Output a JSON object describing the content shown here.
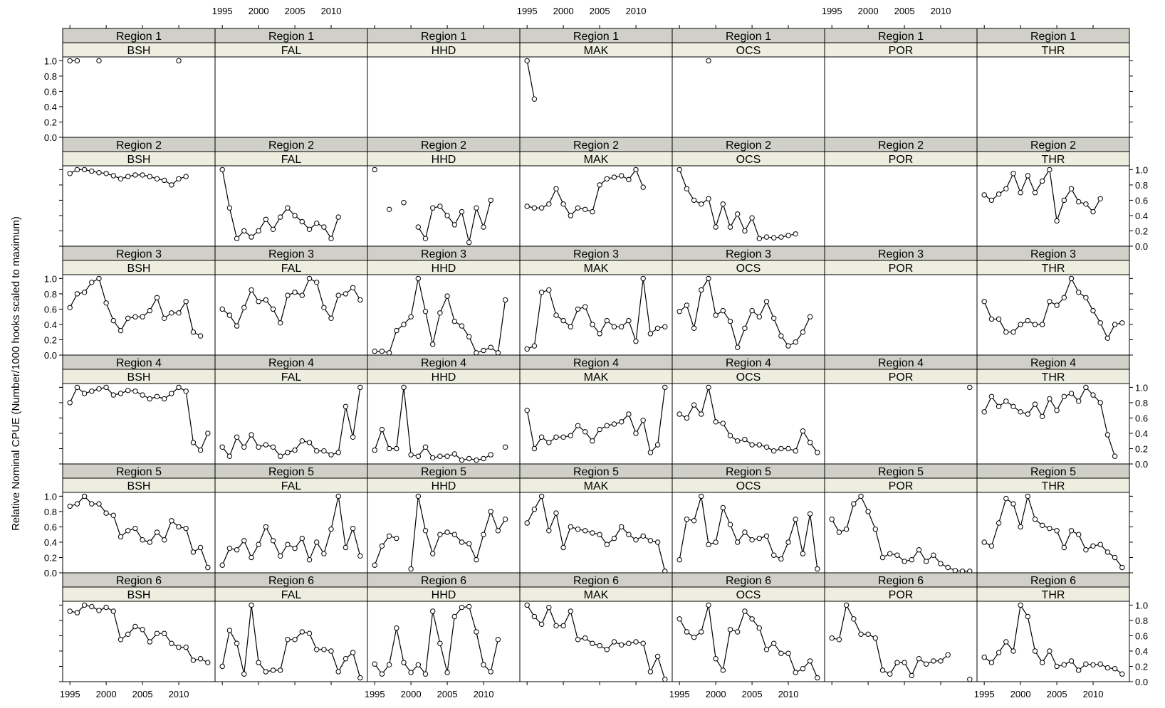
{
  "chart_data": {
    "type": "line",
    "ylabel": "Relative Nominal CPUE (Number/1000 hooks scaled to maximum)",
    "xlim": [
      1994,
      2015
    ],
    "ylim": [
      0,
      1.05
    ],
    "x_ticks": [
      1995,
      2000,
      2005,
      2010
    ],
    "y_ticks": [
      0.0,
      0.2,
      0.4,
      0.6,
      0.8,
      1.0
    ],
    "y_tick_labels": [
      "0.0",
      "0.2",
      "0.4",
      "0.6",
      "0.8",
      "1.0"
    ],
    "years": [
      1995,
      1996,
      1997,
      1998,
      1999,
      2000,
      2001,
      2002,
      2003,
      2004,
      2005,
      2006,
      2007,
      2008,
      2009,
      2010,
      2011,
      2012,
      2013,
      2014
    ],
    "regions": [
      "Region 1",
      "Region 2",
      "Region 3",
      "Region 4",
      "Region 5",
      "Region 6"
    ],
    "species": [
      "BSH",
      "FAL",
      "HHD",
      "MAK",
      "OCS",
      "POR",
      "THR"
    ],
    "panels": [
      [
        [
          1,
          1,
          null,
          null,
          1,
          null,
          null,
          null,
          null,
          null,
          null,
          null,
          null,
          null,
          null,
          1,
          null,
          null,
          null,
          null
        ],
        [
          null,
          null,
          null,
          null,
          null,
          null,
          null,
          null,
          null,
          null,
          null,
          null,
          null,
          null,
          null,
          null,
          null,
          null,
          null,
          null
        ],
        [
          null,
          null,
          null,
          null,
          null,
          null,
          null,
          null,
          null,
          null,
          null,
          null,
          null,
          null,
          null,
          null,
          null,
          null,
          null,
          null
        ],
        [
          1,
          0.5,
          null,
          null,
          null,
          null,
          null,
          null,
          null,
          null,
          null,
          null,
          null,
          null,
          null,
          null,
          null,
          null,
          null,
          null
        ],
        [
          null,
          null,
          null,
          null,
          1,
          null,
          null,
          null,
          null,
          null,
          null,
          null,
          null,
          null,
          null,
          null,
          null,
          null,
          null,
          null
        ],
        [
          null,
          null,
          null,
          null,
          null,
          null,
          null,
          null,
          null,
          null,
          null,
          null,
          null,
          null,
          null,
          null,
          null,
          null,
          null,
          null
        ],
        [
          null,
          null,
          null,
          null,
          null,
          null,
          null,
          null,
          null,
          null,
          null,
          null,
          null,
          null,
          null,
          null,
          null,
          null,
          null,
          null
        ]
      ],
      [
        [
          0.95,
          1,
          1,
          0.98,
          0.96,
          0.95,
          0.92,
          0.88,
          0.91,
          0.93,
          0.93,
          0.91,
          0.88,
          0.86,
          0.8,
          0.88,
          0.91,
          null,
          null,
          null
        ],
        [
          1,
          0.5,
          0.1,
          0.2,
          0.12,
          0.2,
          0.35,
          0.22,
          0.38,
          0.5,
          0.4,
          0.32,
          0.22,
          0.3,
          0.25,
          0.1,
          0.38,
          null,
          null,
          null
        ],
        [
          1,
          null,
          0.48,
          null,
          0.57,
          null,
          0.25,
          0.1,
          0.5,
          0.52,
          0.4,
          0.28,
          0.45,
          0.05,
          0.5,
          0.25,
          0.6,
          null,
          null,
          null
        ],
        [
          0.52,
          0.5,
          0.5,
          0.55,
          0.75,
          0.55,
          0.4,
          0.5,
          0.48,
          0.45,
          0.8,
          0.88,
          0.9,
          0.92,
          0.87,
          1,
          0.77,
          null,
          null,
          null
        ],
        [
          1,
          0.75,
          0.6,
          0.55,
          0.62,
          0.25,
          0.55,
          0.25,
          0.42,
          0.2,
          0.37,
          0.1,
          0.12,
          0.11,
          0.12,
          0.14,
          0.16,
          null,
          null,
          null
        ],
        [
          null,
          null,
          null,
          null,
          null,
          null,
          null,
          null,
          null,
          null,
          null,
          null,
          null,
          null,
          null,
          null,
          null,
          null,
          null,
          null
        ],
        [
          0.67,
          0.6,
          0.68,
          0.75,
          0.95,
          0.7,
          0.92,
          0.7,
          0.85,
          1,
          0.33,
          0.6,
          0.75,
          0.58,
          0.55,
          0.45,
          0.62,
          null,
          null,
          null
        ]
      ],
      [
        [
          0.62,
          0.8,
          0.82,
          0.95,
          1,
          0.68,
          0.45,
          0.32,
          0.48,
          0.5,
          0.5,
          0.58,
          0.75,
          0.48,
          0.55,
          0.55,
          0.7,
          0.3,
          0.25,
          null
        ],
        [
          0.6,
          0.52,
          0.38,
          0.62,
          0.85,
          0.7,
          0.72,
          0.6,
          0.42,
          0.78,
          0.82,
          0.78,
          1,
          0.95,
          0.62,
          0.48,
          0.78,
          0.8,
          0.88,
          0.72
        ],
        [
          0.05,
          0.05,
          0.03,
          0.32,
          0.4,
          0.5,
          1,
          0.57,
          0.14,
          0.55,
          0.77,
          0.44,
          0.38,
          0.24,
          0.03,
          0.06,
          0.1,
          0.03,
          0.72,
          null
        ],
        [
          0.08,
          0.12,
          0.82,
          0.85,
          0.52,
          0.45,
          0.37,
          0.6,
          0.63,
          0.4,
          0.28,
          0.45,
          0.37,
          0.37,
          0.45,
          0.18,
          1,
          0.28,
          0.35,
          0.37
        ],
        [
          0.57,
          0.65,
          0.35,
          0.85,
          1,
          0.52,
          0.58,
          0.44,
          0.1,
          0.35,
          0.58,
          0.5,
          0.7,
          0.48,
          0.25,
          0.12,
          0.17,
          0.3,
          0.5,
          null
        ],
        [
          null,
          null,
          null,
          null,
          null,
          null,
          null,
          null,
          null,
          null,
          null,
          null,
          null,
          null,
          null,
          null,
          null,
          null,
          null,
          null
        ],
        [
          0.7,
          0.47,
          0.47,
          0.3,
          0.3,
          0.4,
          0.45,
          0.4,
          0.4,
          0.7,
          0.65,
          0.75,
          1,
          0.82,
          0.75,
          0.58,
          0.42,
          0.22,
          0.4,
          0.42
        ]
      ],
      [
        [
          0.8,
          1,
          0.92,
          0.95,
          0.98,
          1,
          0.9,
          0.92,
          0.96,
          0.95,
          0.9,
          0.85,
          0.88,
          0.85,
          0.92,
          1,
          0.95,
          0.28,
          0.18,
          0.4
        ],
        [
          0.22,
          0.1,
          0.35,
          0.22,
          0.38,
          0.22,
          0.25,
          0.22,
          0.1,
          0.15,
          0.18,
          0.3,
          0.28,
          0.17,
          0.17,
          0.12,
          0.15,
          0.75,
          0.35,
          1
        ],
        [
          0.18,
          0.45,
          0.2,
          0.2,
          1,
          0.12,
          0.1,
          0.22,
          0.08,
          0.1,
          0.1,
          0.13,
          0.05,
          0.07,
          0.05,
          0.07,
          0.12,
          null,
          0.22,
          null
        ],
        [
          0.7,
          0.2,
          0.35,
          0.28,
          0.35,
          0.35,
          0.37,
          0.5,
          0.42,
          0.3,
          0.45,
          0.5,
          0.52,
          0.55,
          0.65,
          0.4,
          0.57,
          0.15,
          0.25,
          1
        ],
        [
          0.65,
          0.6,
          0.77,
          0.65,
          1,
          0.55,
          0.53,
          0.37,
          0.3,
          0.32,
          0.25,
          0.25,
          0.22,
          0.17,
          0.2,
          0.2,
          0.17,
          0.43,
          0.28,
          0.15
        ],
        [
          null,
          null,
          null,
          null,
          null,
          null,
          null,
          null,
          null,
          null,
          null,
          null,
          null,
          null,
          null,
          null,
          null,
          null,
          null,
          1
        ],
        [
          0.68,
          0.88,
          0.75,
          0.82,
          0.75,
          0.68,
          0.65,
          0.78,
          0.62,
          0.85,
          0.7,
          0.88,
          0.92,
          0.82,
          1,
          0.9,
          0.8,
          0.38,
          0.1,
          null
        ]
      ],
      [
        [
          0.87,
          0.9,
          1,
          0.9,
          0.9,
          0.78,
          0.75,
          0.47,
          0.55,
          0.58,
          0.43,
          0.4,
          0.53,
          0.43,
          0.68,
          0.6,
          0.58,
          0.27,
          0.33,
          0.07
        ],
        [
          0.1,
          0.32,
          0.3,
          0.42,
          0.2,
          0.37,
          0.6,
          0.42,
          0.22,
          0.37,
          0.32,
          0.45,
          0.17,
          0.4,
          0.25,
          0.57,
          1,
          0.33,
          0.58,
          0.22
        ],
        [
          0.1,
          0.35,
          0.48,
          0.45,
          null,
          0.05,
          1,
          0.55,
          0.25,
          0.5,
          0.53,
          0.5,
          0.4,
          0.38,
          0.17,
          0.5,
          0.8,
          0.55,
          0.7,
          null
        ],
        [
          0.65,
          0.83,
          1,
          0.55,
          0.78,
          0.33,
          0.6,
          0.57,
          0.55,
          0.52,
          0.5,
          0.37,
          0.45,
          0.6,
          0.5,
          0.43,
          0.48,
          0.42,
          0.4,
          0.02
        ],
        [
          0.17,
          0.7,
          0.68,
          1,
          0.37,
          0.4,
          0.85,
          0.63,
          0.4,
          0.53,
          0.43,
          0.45,
          0.48,
          0.23,
          0.18,
          0.4,
          0.7,
          0.25,
          0.77,
          0.05
        ],
        [
          0.7,
          0.53,
          0.57,
          0.9,
          1,
          0.8,
          0.57,
          0.2,
          0.25,
          0.23,
          0.15,
          0.17,
          0.3,
          0.15,
          0.23,
          0.12,
          0.07,
          0.03,
          0.02,
          0.02
        ],
        [
          0.4,
          0.35,
          0.65,
          0.97,
          0.9,
          0.6,
          1,
          0.7,
          0.62,
          0.58,
          0.55,
          0.33,
          0.55,
          0.5,
          0.3,
          0.35,
          0.37,
          0.27,
          0.2,
          0.07
        ]
      ],
      [
        [
          0.92,
          0.9,
          1,
          0.98,
          0.93,
          0.97,
          0.92,
          0.55,
          0.62,
          0.72,
          0.68,
          0.52,
          0.63,
          0.63,
          0.5,
          0.45,
          0.45,
          0.28,
          0.3,
          0.25
        ],
        [
          0.2,
          0.67,
          0.5,
          0.1,
          1,
          0.25,
          0.13,
          0.15,
          0.15,
          0.55,
          0.55,
          0.65,
          0.63,
          0.42,
          0.42,
          0.4,
          0.13,
          0.3,
          0.38,
          0.05
        ],
        [
          0.23,
          0.1,
          0.22,
          0.7,
          0.25,
          0.12,
          0.22,
          0.1,
          0.92,
          0.5,
          0.12,
          0.85,
          0.97,
          0.98,
          0.65,
          0.22,
          0.13,
          0.55,
          null,
          null
        ],
        [
          1,
          0.85,
          0.75,
          0.97,
          0.73,
          0.73,
          0.92,
          0.55,
          0.57,
          0.5,
          0.47,
          0.42,
          0.52,
          0.48,
          0.5,
          0.52,
          0.5,
          0.13,
          0.33,
          0.03
        ],
        [
          0.82,
          0.65,
          0.58,
          0.65,
          1,
          0.3,
          0.15,
          0.68,
          0.65,
          0.92,
          0.82,
          0.7,
          0.42,
          0.5,
          0.37,
          0.37,
          0.12,
          0.17,
          0.27,
          0.05
        ],
        [
          0.57,
          0.55,
          1,
          0.82,
          0.62,
          0.62,
          0.57,
          0.15,
          0.1,
          0.25,
          0.25,
          0.08,
          0.3,
          0.23,
          0.27,
          0.27,
          0.35,
          null,
          null,
          0.03
        ],
        [
          0.32,
          0.25,
          0.38,
          0.52,
          0.4,
          1,
          0.85,
          0.4,
          0.25,
          0.4,
          0.2,
          0.22,
          0.27,
          0.15,
          0.23,
          0.22,
          0.23,
          0.18,
          0.17,
          0.1
        ]
      ]
    ]
  }
}
